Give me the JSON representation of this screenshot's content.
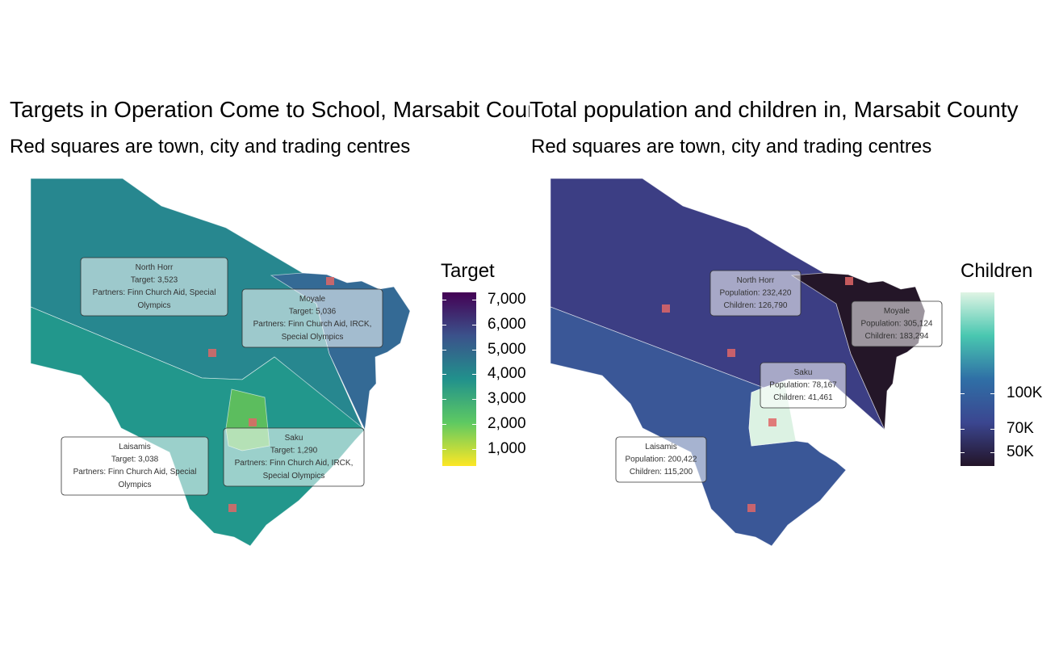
{
  "left": {
    "title": "Targets in Operation Come to School, Marsabit County",
    "subtitle": "Red squares are town, city and trading centres",
    "legend": {
      "title": "Target",
      "ticks": [
        "7,000",
        "6,000",
        "5,000",
        "4,000",
        "3,000",
        "2,000",
        "1,000"
      ],
      "tick_values": [
        7000,
        6000,
        5000,
        4000,
        3000,
        2000,
        1000
      ],
      "range": [
        300,
        7300
      ],
      "gradient": [
        "#440154",
        "#3b528b",
        "#21918c",
        "#5ec962",
        "#fde725"
      ]
    },
    "regions": [
      {
        "name": "North Horr",
        "value": 3523,
        "color": "#27878f",
        "label": [
          "North Horr",
          "Target: 3,523",
          "Partners: Finn Church Aid, Special",
          "Olympics"
        ]
      },
      {
        "name": "Moyale",
        "value": 5036,
        "color": "#346a95",
        "label": [
          "Moyale",
          "Target: 5,036",
          "Partners: Finn Church Aid, IRCK,",
          "Special Olympics"
        ]
      },
      {
        "name": "Laisamis",
        "value": 3038,
        "color": "#22978c",
        "label": [
          "Laisamis",
          "Target: 3,038",
          "Partners: Finn Church Aid, Special",
          "Olympics"
        ]
      },
      {
        "name": "Saku",
        "value": 1290,
        "color": "#5cbd5e",
        "label": [
          "Saku",
          "Target: 1,290",
          "Partners: Finn Church Aid, IRCK,",
          "Special Olympics"
        ]
      }
    ]
  },
  "right": {
    "title": "Total population and children in, Marsabit County",
    "subtitle": "Red squares are town, city and trading centres",
    "legend": {
      "title": "Children",
      "ticks": [
        "100K",
        "70K",
        "50K"
      ],
      "tick_values": [
        100000,
        70000,
        50000
      ],
      "range": [
        38000,
        186000
      ],
      "gradient": [
        "#dff4e4",
        "#49c7b0",
        "#2f6fa6",
        "#3b4690",
        "#231428"
      ]
    },
    "regions": [
      {
        "name": "North Horr",
        "population": 232420,
        "children": 126790,
        "color": "#3c3e84",
        "label": [
          "North Horr",
          "Population: 232,420",
          "Children: 126,790"
        ]
      },
      {
        "name": "Moyale",
        "population": 305124,
        "children": 183294,
        "color": "#241628",
        "label": [
          "Moyale",
          "Population: 305,124",
          "Children: 183,294"
        ]
      },
      {
        "name": "Laisamis",
        "population": 200422,
        "children": 115200,
        "color": "#3a5797",
        "label": [
          "Laisamis",
          "Population: 200,422",
          "Children: 115,200"
        ]
      },
      {
        "name": "Saku",
        "population": 78167,
        "children": 41461,
        "color": "#dcf2e3",
        "label": [
          "Saku",
          "Population: 78,167",
          "Children: 41,461"
        ]
      }
    ]
  },
  "town_marker_color": "#e06666"
}
